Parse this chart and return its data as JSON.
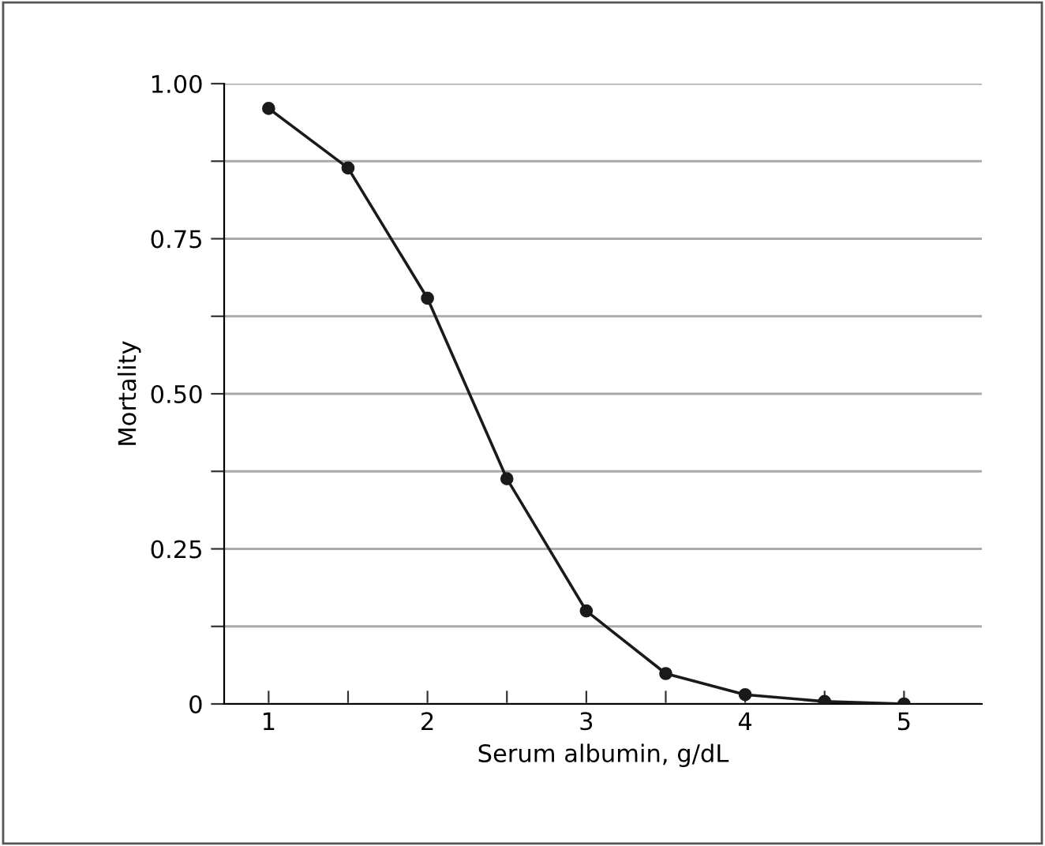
{
  "chart_data": {
    "type": "line",
    "xlabel": "Serum albumin, g/dL",
    "ylabel": "Mortality",
    "x": [
      1,
      1.5,
      2,
      2.5,
      3,
      3.5,
      4,
      4.5,
      5
    ],
    "series": [
      {
        "color": "#1a1a1a",
        "values": [
          0.96,
          0.864,
          0.654,
          0.363,
          0.15,
          0.049,
          0.015,
          0.004,
          0.0
        ]
      }
    ],
    "xlim": [
      0.72,
      5.49
    ],
    "ylim": [
      0,
      1.0
    ],
    "xticks": [
      1,
      {
        "value": 1.5,
        "label": null
      },
      2,
      {
        "value": 2.5,
        "label": null
      },
      3,
      {
        "value": 3.5,
        "label": null
      },
      4,
      {
        "value": 4.5,
        "label": null
      },
      5
    ],
    "yticks": [
      {
        "value": 0,
        "label": "0"
      },
      {
        "value": 0.125,
        "label": null
      },
      {
        "value": 0.25,
        "label": "0.25"
      },
      {
        "value": 0.375,
        "label": null
      },
      {
        "value": 0.5,
        "label": "0.50"
      },
      {
        "value": 0.625,
        "label": null
      },
      {
        "value": 0.75,
        "label": "0.75"
      },
      {
        "value": 0.875,
        "label": null
      },
      {
        "value": 1.0,
        "label": "1.00"
      }
    ],
    "grid": "y",
    "marker": "circle",
    "line_style": "solid"
  }
}
